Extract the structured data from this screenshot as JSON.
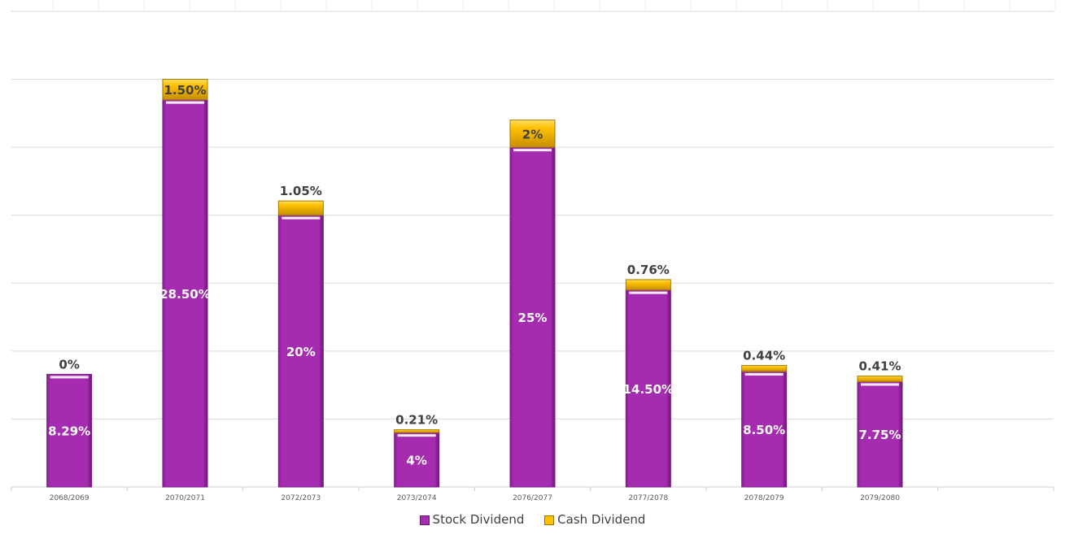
{
  "chart_data": {
    "type": "bar",
    "stacked": true,
    "categories": [
      "2068/2069",
      "2070/2071",
      "2072/2073",
      "2073/2074",
      "2076/2077",
      "2077/2078",
      "2078/2079",
      "2079/2080"
    ],
    "series": [
      {
        "name": "Stock Dividend",
        "values": [
          8.29,
          28.5,
          20,
          4,
          25,
          14.5,
          8.5,
          7.75
        ],
        "labels": [
          "8.29%",
          "28.50%",
          "20%",
          "4%",
          "25%",
          "14.50%",
          "8.50%",
          "7.75%"
        ],
        "color": "#a52cb0"
      },
      {
        "name": "Cash Dividend",
        "values": [
          0,
          1.5,
          1.05,
          0.21,
          2,
          0.76,
          0.44,
          0.41
        ],
        "labels": [
          "0%",
          "1.50%",
          "1.05%",
          "0.21%",
          "2%",
          "0.76%",
          "0.44%",
          "0.41%"
        ],
        "color": "#ffc000"
      }
    ],
    "ylim": [
      0,
      35
    ],
    "grid": true,
    "y_tick_labels_shown": false,
    "legend": "bottom"
  }
}
